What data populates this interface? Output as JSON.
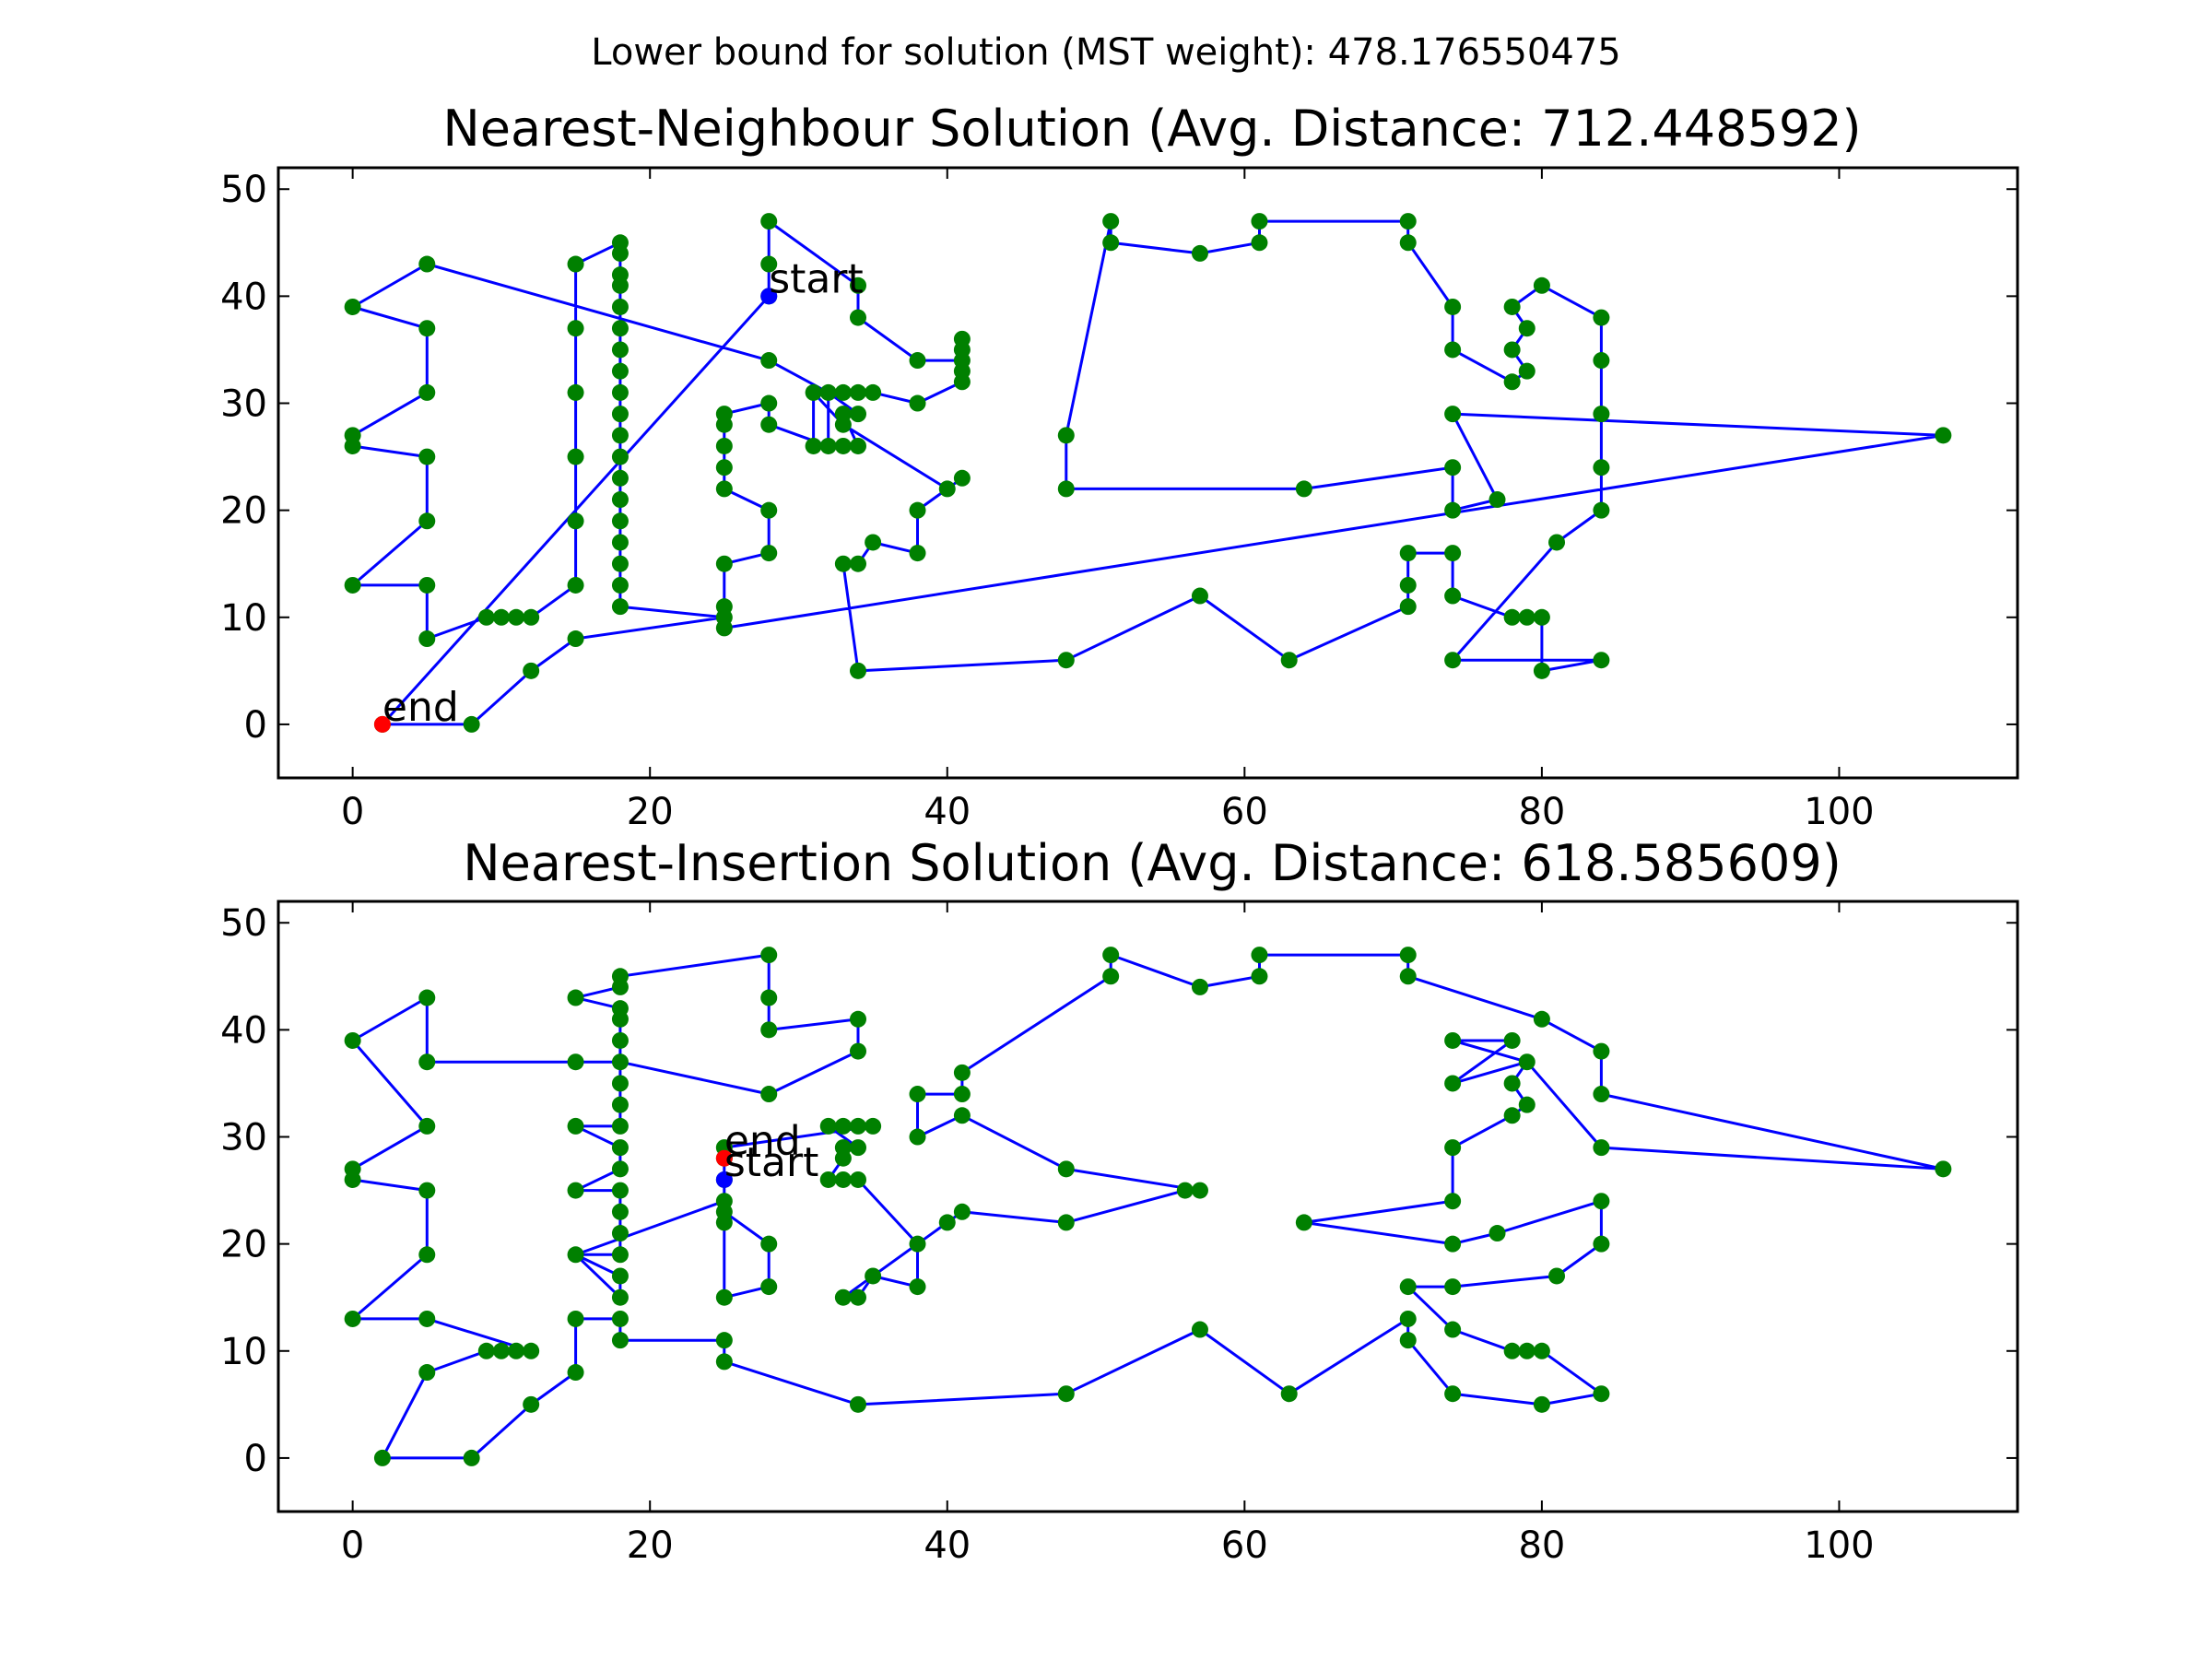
{
  "suptitle": "Lower bound for solution (MST weight): 478.176550475",
  "chart_data": [
    {
      "type": "line",
      "title": "Nearest-Neighbour Solution (Avg. Distance: 712.448592)",
      "xlim": [
        -5,
        112
      ],
      "ylim": [
        -5,
        52
      ],
      "x_ticks": [
        0,
        20,
        40,
        60,
        80,
        100
      ],
      "y_ticks": [
        0,
        10,
        20,
        30,
        40,
        50
      ],
      "grid": false,
      "colors": {
        "route": "#0000ff",
        "city": "#008000",
        "start": "#0000ff",
        "end": "#ff0000"
      },
      "start": {
        "label": "start",
        "x": 28,
        "y": 40
      },
      "end": {
        "label": "end",
        "x": 2,
        "y": 0
      },
      "route": [
        [
          28,
          40
        ],
        [
          28,
          43
        ],
        [
          28,
          47
        ],
        [
          34,
          41
        ],
        [
          34,
          38
        ],
        [
          38,
          34
        ],
        [
          41,
          34
        ],
        [
          41,
          35
        ],
        [
          41,
          36
        ],
        [
          41,
          33
        ],
        [
          41,
          32
        ],
        [
          38,
          30
        ],
        [
          35,
          31
        ],
        [
          34,
          31
        ],
        [
          33,
          31
        ],
        [
          32,
          31
        ],
        [
          34,
          29
        ],
        [
          33,
          29
        ],
        [
          34,
          26
        ],
        [
          33,
          26
        ],
        [
          32,
          26
        ],
        [
          31,
          26
        ],
        [
          31,
          31
        ],
        [
          33,
          28
        ],
        [
          40,
          22
        ],
        [
          41,
          23
        ],
        [
          38,
          20
        ],
        [
          38,
          16
        ],
        [
          35,
          17
        ],
        [
          34,
          15
        ],
        [
          33,
          15
        ],
        [
          34,
          5
        ],
        [
          48,
          6
        ],
        [
          57,
          12
        ],
        [
          63,
          6
        ],
        [
          71,
          11
        ],
        [
          71,
          13
        ],
        [
          71,
          16
        ],
        [
          74,
          16
        ],
        [
          74,
          12
        ],
        [
          78,
          10
        ],
        [
          79,
          10
        ],
        [
          80,
          10
        ],
        [
          80,
          5
        ],
        [
          84,
          6
        ],
        [
          74,
          6
        ],
        [
          81,
          17
        ],
        [
          84,
          20
        ],
        [
          84,
          24
        ],
        [
          84,
          29
        ],
        [
          84,
          34
        ],
        [
          84,
          38
        ],
        [
          80,
          41
        ],
        [
          78,
          39
        ],
        [
          79,
          37
        ],
        [
          78,
          35
        ],
        [
          79,
          33
        ],
        [
          78,
          32
        ],
        [
          74,
          35
        ],
        [
          74,
          39
        ],
        [
          71,
          45
        ],
        [
          71,
          47
        ],
        [
          61,
          47
        ],
        [
          61,
          45
        ],
        [
          57,
          44
        ],
        [
          51,
          45
        ],
        [
          51,
          47
        ],
        [
          48,
          27
        ],
        [
          48,
          22
        ],
        [
          64,
          22
        ],
        [
          74,
          24
        ],
        [
          74,
          20
        ],
        [
          77,
          21
        ],
        [
          74,
          29
        ],
        [
          107,
          27
        ],
        [
          25,
          9
        ],
        [
          25,
          11
        ],
        [
          25,
          15
        ],
        [
          28,
          16
        ],
        [
          28,
          20
        ],
        [
          25,
          22
        ],
        [
          25,
          24
        ],
        [
          25,
          26
        ],
        [
          25,
          28
        ],
        [
          25,
          29
        ],
        [
          28,
          30
        ],
        [
          28,
          28
        ],
        [
          32,
          26
        ],
        [
          32,
          31
        ],
        [
          28,
          34
        ],
        [
          5,
          43
        ],
        [
          0,
          39
        ],
        [
          5,
          37
        ],
        [
          5,
          31
        ],
        [
          0,
          27
        ],
        [
          0,
          26
        ],
        [
          5,
          25
        ],
        [
          5,
          19
        ],
        [
          0,
          13
        ],
        [
          5,
          13
        ],
        [
          5,
          8
        ],
        [
          9,
          10
        ],
        [
          10,
          10
        ],
        [
          11,
          10
        ],
        [
          12,
          10
        ],
        [
          15,
          13
        ],
        [
          15,
          19
        ],
        [
          15,
          25
        ],
        [
          15,
          31
        ],
        [
          15,
          37
        ],
        [
          15,
          43
        ],
        [
          18,
          45
        ],
        [
          18,
          44
        ],
        [
          18,
          42
        ],
        [
          18,
          41
        ],
        [
          18,
          39
        ],
        [
          18,
          37
        ],
        [
          18,
          35
        ],
        [
          18,
          33
        ],
        [
          18,
          31
        ],
        [
          18,
          29
        ],
        [
          18,
          27
        ],
        [
          18,
          25
        ],
        [
          18,
          23
        ],
        [
          18,
          21
        ],
        [
          18,
          19
        ],
        [
          18,
          17
        ],
        [
          18,
          15
        ],
        [
          18,
          13
        ],
        [
          18,
          11
        ],
        [
          25,
          10
        ],
        [
          15,
          8
        ],
        [
          12,
          5
        ],
        [
          8,
          0
        ],
        [
          2,
          0
        ],
        [
          28,
          40
        ]
      ]
    },
    {
      "type": "line",
      "title": "Nearest-Insertion Solution (Avg. Distance: 618.585609)",
      "xlim": [
        -5,
        112
      ],
      "ylim": [
        -5,
        52
      ],
      "x_ticks": [
        0,
        20,
        40,
        60,
        80,
        100
      ],
      "y_ticks": [
        0,
        10,
        20,
        30,
        40,
        50
      ],
      "grid": false,
      "colors": {
        "route": "#0000ff",
        "city": "#008000",
        "start": "#0000ff",
        "end": "#ff0000"
      },
      "start": {
        "label": "start",
        "x": 25,
        "y": 26
      },
      "end": {
        "label": "end",
        "x": 25,
        "y": 28
      },
      "route": [
        [
          25,
          26
        ],
        [
          25,
          29
        ],
        [
          35,
          31
        ],
        [
          34,
          31
        ],
        [
          33,
          31
        ],
        [
          32,
          31
        ],
        [
          34,
          29
        ],
        [
          33,
          29
        ],
        [
          33,
          28
        ],
        [
          32,
          26
        ],
        [
          33,
          26
        ],
        [
          34,
          26
        ],
        [
          38,
          20
        ],
        [
          38,
          16
        ],
        [
          35,
          17
        ],
        [
          34,
          15
        ],
        [
          33,
          15
        ],
        [
          40,
          22
        ],
        [
          41,
          23
        ],
        [
          48,
          22
        ],
        [
          56,
          25
        ],
        [
          57,
          25
        ],
        [
          48,
          27
        ],
        [
          41,
          32
        ],
        [
          38,
          30
        ],
        [
          38,
          34
        ],
        [
          41,
          34
        ],
        [
          41,
          36
        ],
        [
          51,
          45
        ],
        [
          51,
          47
        ],
        [
          57,
          44
        ],
        [
          61,
          45
        ],
        [
          61,
          47
        ],
        [
          71,
          47
        ],
        [
          71,
          45
        ],
        [
          80,
          41
        ],
        [
          84,
          38
        ],
        [
          84,
          34
        ],
        [
          107,
          27
        ],
        [
          84,
          29
        ],
        [
          79,
          37
        ],
        [
          74,
          39
        ],
        [
          78,
          39
        ],
        [
          74,
          35
        ],
        [
          79,
          37
        ],
        [
          78,
          35
        ],
        [
          79,
          33
        ],
        [
          78,
          32
        ],
        [
          74,
          29
        ],
        [
          74,
          24
        ],
        [
          64,
          22
        ],
        [
          74,
          20
        ],
        [
          77,
          21
        ],
        [
          84,
          24
        ],
        [
          84,
          20
        ],
        [
          81,
          17
        ],
        [
          74,
          16
        ],
        [
          71,
          16
        ],
        [
          74,
          12
        ],
        [
          78,
          10
        ],
        [
          79,
          10
        ],
        [
          80,
          10
        ],
        [
          84,
          6
        ],
        [
          80,
          5
        ],
        [
          74,
          6
        ],
        [
          71,
          11
        ],
        [
          71,
          13
        ],
        [
          63,
          6
        ],
        [
          57,
          12
        ],
        [
          48,
          6
        ],
        [
          34,
          5
        ],
        [
          25,
          9
        ],
        [
          25,
          11
        ],
        [
          18,
          11
        ],
        [
          18,
          13
        ],
        [
          15,
          13
        ],
        [
          15,
          8
        ],
        [
          12,
          5
        ],
        [
          8,
          0
        ],
        [
          2,
          0
        ],
        [
          5,
          8
        ],
        [
          9,
          10
        ],
        [
          10,
          10
        ],
        [
          11,
          10
        ],
        [
          12,
          10
        ],
        [
          5,
          13
        ],
        [
          0,
          13
        ],
        [
          5,
          19
        ],
        [
          5,
          25
        ],
        [
          0,
          26
        ],
        [
          0,
          27
        ],
        [
          5,
          31
        ],
        [
          0,
          39
        ],
        [
          5,
          43
        ],
        [
          5,
          37
        ],
        [
          15,
          37
        ],
        [
          18,
          37
        ],
        [
          28,
          34
        ],
        [
          34,
          38
        ],
        [
          34,
          41
        ],
        [
          28,
          40
        ],
        [
          28,
          43
        ],
        [
          28,
          47
        ],
        [
          18,
          45
        ],
        [
          18,
          44
        ],
        [
          15,
          43
        ],
        [
          18,
          42
        ],
        [
          18,
          41
        ],
        [
          18,
          39
        ],
        [
          18,
          35
        ],
        [
          18,
          33
        ],
        [
          18,
          31
        ],
        [
          15,
          31
        ],
        [
          18,
          29
        ],
        [
          18,
          27
        ],
        [
          15,
          25
        ],
        [
          18,
          25
        ],
        [
          18,
          23
        ],
        [
          18,
          21
        ],
        [
          18,
          19
        ],
        [
          15,
          19
        ],
        [
          18,
          17
        ],
        [
          18,
          15
        ],
        [
          15,
          19
        ],
        [
          25,
          24
        ],
        [
          25,
          22
        ],
        [
          25,
          15
        ],
        [
          28,
          16
        ],
        [
          28,
          20
        ],
        [
          25,
          23
        ],
        [
          25,
          28
        ]
      ]
    }
  ]
}
